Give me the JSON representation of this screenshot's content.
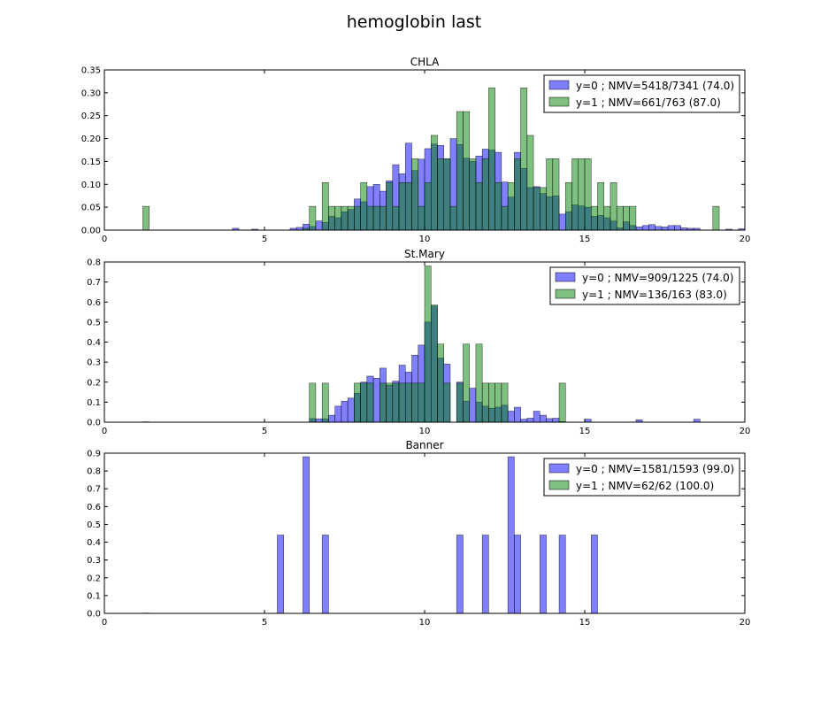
{
  "figure": {
    "title": "hemoglobin last"
  },
  "colors": {
    "y0": "#0000ff",
    "y1": "#008000",
    "axis": "#000000"
  },
  "chart_data": [
    {
      "type": "bar",
      "title": "CHLA",
      "xlim": [
        0,
        20
      ],
      "ylim": [
        0,
        0.35
      ],
      "xticks": [
        "0",
        "5",
        "10",
        "15",
        "20"
      ],
      "yticks": [
        "0.00",
        "0.05",
        "0.10",
        "0.15",
        "0.20",
        "0.25",
        "0.30",
        "0.35"
      ],
      "legend_position": "top-right",
      "bin_width": 0.2,
      "series": [
        {
          "name": "y=0 ; NMV=5418/7341 (74.0)",
          "color": "#0000ff",
          "bins": [
            [
              4.0,
              0.004
            ],
            [
              4.6,
              0.002
            ],
            [
              5.8,
              0.004
            ],
            [
              6.0,
              0.006
            ],
            [
              6.2,
              0.013
            ],
            [
              6.4,
              0.008
            ],
            [
              6.6,
              0.02
            ],
            [
              6.8,
              0.017
            ],
            [
              7.0,
              0.03
            ],
            [
              7.2,
              0.027
            ],
            [
              7.4,
              0.04
            ],
            [
              7.6,
              0.045
            ],
            [
              7.8,
              0.068
            ],
            [
              8.0,
              0.062
            ],
            [
              8.2,
              0.095
            ],
            [
              8.4,
              0.1
            ],
            [
              8.6,
              0.085
            ],
            [
              8.8,
              0.108
            ],
            [
              9.0,
              0.143
            ],
            [
              9.2,
              0.123
            ],
            [
              9.4,
              0.19
            ],
            [
              9.6,
              0.13
            ],
            [
              9.8,
              0.155
            ],
            [
              10.0,
              0.178
            ],
            [
              10.2,
              0.188
            ],
            [
              10.4,
              0.185
            ],
            [
              10.6,
              0.155
            ],
            [
              10.8,
              0.2
            ],
            [
              11.0,
              0.187
            ],
            [
              11.2,
              0.157
            ],
            [
              11.4,
              0.15
            ],
            [
              11.6,
              0.162
            ],
            [
              11.8,
              0.177
            ],
            [
              12.0,
              0.175
            ],
            [
              12.2,
              0.17
            ],
            [
              12.4,
              0.105
            ],
            [
              12.6,
              0.072
            ],
            [
              12.8,
              0.17
            ],
            [
              13.0,
              0.135
            ],
            [
              13.2,
              0.093
            ],
            [
              13.4,
              0.095
            ],
            [
              13.6,
              0.08
            ],
            [
              13.8,
              0.073
            ],
            [
              14.0,
              0.075
            ],
            [
              14.2,
              0.035
            ],
            [
              14.4,
              0.04
            ],
            [
              14.6,
              0.055
            ],
            [
              14.8,
              0.053
            ],
            [
              15.0,
              0.05
            ],
            [
              15.2,
              0.03
            ],
            [
              15.4,
              0.032
            ],
            [
              15.6,
              0.027
            ],
            [
              15.8,
              0.02
            ],
            [
              16.0,
              0.005
            ],
            [
              16.2,
              0.018
            ],
            [
              16.4,
              0.01
            ],
            [
              16.6,
              0.007
            ],
            [
              16.8,
              0.01
            ],
            [
              17.0,
              0.012
            ],
            [
              17.2,
              0.008
            ],
            [
              17.4,
              0.007
            ],
            [
              17.6,
              0.01
            ],
            [
              17.8,
              0.01
            ],
            [
              18.0,
              0.005
            ],
            [
              18.2,
              0.004
            ],
            [
              18.4,
              0.004
            ],
            [
              19.4,
              0.002
            ],
            [
              19.8,
              0.003
            ]
          ]
        },
        {
          "name": "y=1 ; NMV=661/763 (87.0)",
          "color": "#008000",
          "bins": [
            [
              1.2,
              0.052
            ],
            [
              6.2,
              0.004
            ],
            [
              6.4,
              0.052
            ],
            [
              6.8,
              0.104
            ],
            [
              7.0,
              0.052
            ],
            [
              7.2,
              0.052
            ],
            [
              7.4,
              0.052
            ],
            [
              7.6,
              0.052
            ],
            [
              7.8,
              0.052
            ],
            [
              8.0,
              0.104
            ],
            [
              8.2,
              0.052
            ],
            [
              8.4,
              0.052
            ],
            [
              8.6,
              0.052
            ],
            [
              8.8,
              0.104
            ],
            [
              9.0,
              0.052
            ],
            [
              9.2,
              0.104
            ],
            [
              9.4,
              0.104
            ],
            [
              9.6,
              0.156
            ],
            [
              9.8,
              0.052
            ],
            [
              10.0,
              0.104
            ],
            [
              10.2,
              0.207
            ],
            [
              10.4,
              0.156
            ],
            [
              10.6,
              0.156
            ],
            [
              10.8,
              0.052
            ],
            [
              11.0,
              0.259
            ],
            [
              11.2,
              0.259
            ],
            [
              11.4,
              0.156
            ],
            [
              11.6,
              0.104
            ],
            [
              11.8,
              0.156
            ],
            [
              12.0,
              0.311
            ],
            [
              12.2,
              0.104
            ],
            [
              12.4,
              0.052
            ],
            [
              12.6,
              0.104
            ],
            [
              12.8,
              0.156
            ],
            [
              13.0,
              0.311
            ],
            [
              13.2,
              0.207
            ],
            [
              13.4,
              0.093
            ],
            [
              13.6,
              0.093
            ],
            [
              13.8,
              0.156
            ],
            [
              14.0,
              0.156
            ],
            [
              14.4,
              0.104
            ],
            [
              14.6,
              0.156
            ],
            [
              14.8,
              0.156
            ],
            [
              15.0,
              0.156
            ],
            [
              15.2,
              0.052
            ],
            [
              15.4,
              0.104
            ],
            [
              15.6,
              0.052
            ],
            [
              15.8,
              0.104
            ],
            [
              16.0,
              0.052
            ],
            [
              16.2,
              0.052
            ],
            [
              16.4,
              0.052
            ],
            [
              19.0,
              0.052
            ]
          ]
        }
      ]
    },
    {
      "type": "bar",
      "title": "St.Mary",
      "xlim": [
        0,
        20
      ],
      "ylim": [
        0,
        0.8
      ],
      "xticks": [
        "0",
        "5",
        "10",
        "15",
        "20"
      ],
      "yticks": [
        "0.0",
        "0.1",
        "0.2",
        "0.3",
        "0.4",
        "0.5",
        "0.6",
        "0.7",
        "0.8"
      ],
      "legend_position": "top-right",
      "bin_width": 0.2,
      "series": [
        {
          "name": "y=0 ; NMV=909/1225 (74.0)",
          "color": "#0000ff",
          "bins": [
            [
              1.2,
              0.002
            ],
            [
              6.4,
              0.018
            ],
            [
              6.6,
              0.017
            ],
            [
              6.8,
              0.017
            ],
            [
              7.0,
              0.035
            ],
            [
              7.2,
              0.08
            ],
            [
              7.4,
              0.105
            ],
            [
              7.6,
              0.12
            ],
            [
              7.8,
              0.145
            ],
            [
              8.0,
              0.2
            ],
            [
              8.2,
              0.23
            ],
            [
              8.4,
              0.22
            ],
            [
              8.6,
              0.27
            ],
            [
              8.8,
              0.185
            ],
            [
              9.0,
              0.205
            ],
            [
              9.2,
              0.285
            ],
            [
              9.4,
              0.25
            ],
            [
              9.6,
              0.335
            ],
            [
              9.8,
              0.385
            ],
            [
              10.0,
              0.5
            ],
            [
              10.2,
              0.58
            ],
            [
              10.4,
              0.32
            ],
            [
              10.6,
              0.29
            ],
            [
              11.0,
              0.2
            ],
            [
              11.2,
              0.105
            ],
            [
              11.4,
              0.17
            ],
            [
              11.6,
              0.1
            ],
            [
              11.8,
              0.08
            ],
            [
              12.0,
              0.07
            ],
            [
              12.2,
              0.075
            ],
            [
              12.4,
              0.085
            ],
            [
              12.6,
              0.055
            ],
            [
              12.8,
              0.075
            ],
            [
              13.0,
              0.015
            ],
            [
              13.2,
              0.02
            ],
            [
              13.4,
              0.055
            ],
            [
              13.6,
              0.035
            ],
            [
              13.8,
              0.018
            ],
            [
              14.0,
              0.02
            ],
            [
              14.2,
              0.003
            ],
            [
              15.0,
              0.015
            ],
            [
              16.6,
              0.012
            ],
            [
              18.4,
              0.015
            ]
          ]
        },
        {
          "name": "y=1 ; NMV=136/163 (83.0)",
          "color": "#008000",
          "bins": [
            [
              6.4,
              0.195
            ],
            [
              6.8,
              0.195
            ],
            [
              7.8,
              0.195
            ],
            [
              8.0,
              0.195
            ],
            [
              8.2,
              0.195
            ],
            [
              8.6,
              0.195
            ],
            [
              8.8,
              0.195
            ],
            [
              9.0,
              0.195
            ],
            [
              9.2,
              0.195
            ],
            [
              9.4,
              0.195
            ],
            [
              9.6,
              0.195
            ],
            [
              9.8,
              0.195
            ],
            [
              10.0,
              0.78
            ],
            [
              10.2,
              0.585
            ],
            [
              10.4,
              0.39
            ],
            [
              10.6,
              0.195
            ],
            [
              11.0,
              0.195
            ],
            [
              11.2,
              0.39
            ],
            [
              11.6,
              0.39
            ],
            [
              11.8,
              0.195
            ],
            [
              12.0,
              0.195
            ],
            [
              12.2,
              0.195
            ],
            [
              12.4,
              0.195
            ],
            [
              13.8,
              0.0
            ],
            [
              14.2,
              0.195
            ]
          ]
        }
      ]
    },
    {
      "type": "bar",
      "title": "Banner",
      "xlim": [
        0,
        20
      ],
      "ylim": [
        0,
        0.9
      ],
      "xticks": [
        "0",
        "5",
        "10",
        "15",
        "20"
      ],
      "yticks": [
        "0.0",
        "0.1",
        "0.2",
        "0.3",
        "0.4",
        "0.5",
        "0.6",
        "0.7",
        "0.8",
        "0.9"
      ],
      "legend_position": "top-right",
      "bin_width": 0.2,
      "series": [
        {
          "name": "y=0 ; NMV=1581/1593 (99.0)",
          "color": "#0000ff",
          "bins": [
            [
              1.2,
              0.002
            ],
            [
              5.4,
              0.44
            ],
            [
              6.2,
              0.88
            ],
            [
              6.8,
              0.44
            ],
            [
              11.0,
              0.44
            ],
            [
              11.8,
              0.44
            ],
            [
              12.6,
              0.88
            ],
            [
              12.8,
              0.44
            ],
            [
              13.6,
              0.44
            ],
            [
              14.2,
              0.44
            ],
            [
              15.2,
              0.44
            ]
          ]
        },
        {
          "name": "y=1 ; NMV=62/62 (100.0)",
          "color": "#008000",
          "bins": []
        }
      ]
    }
  ]
}
